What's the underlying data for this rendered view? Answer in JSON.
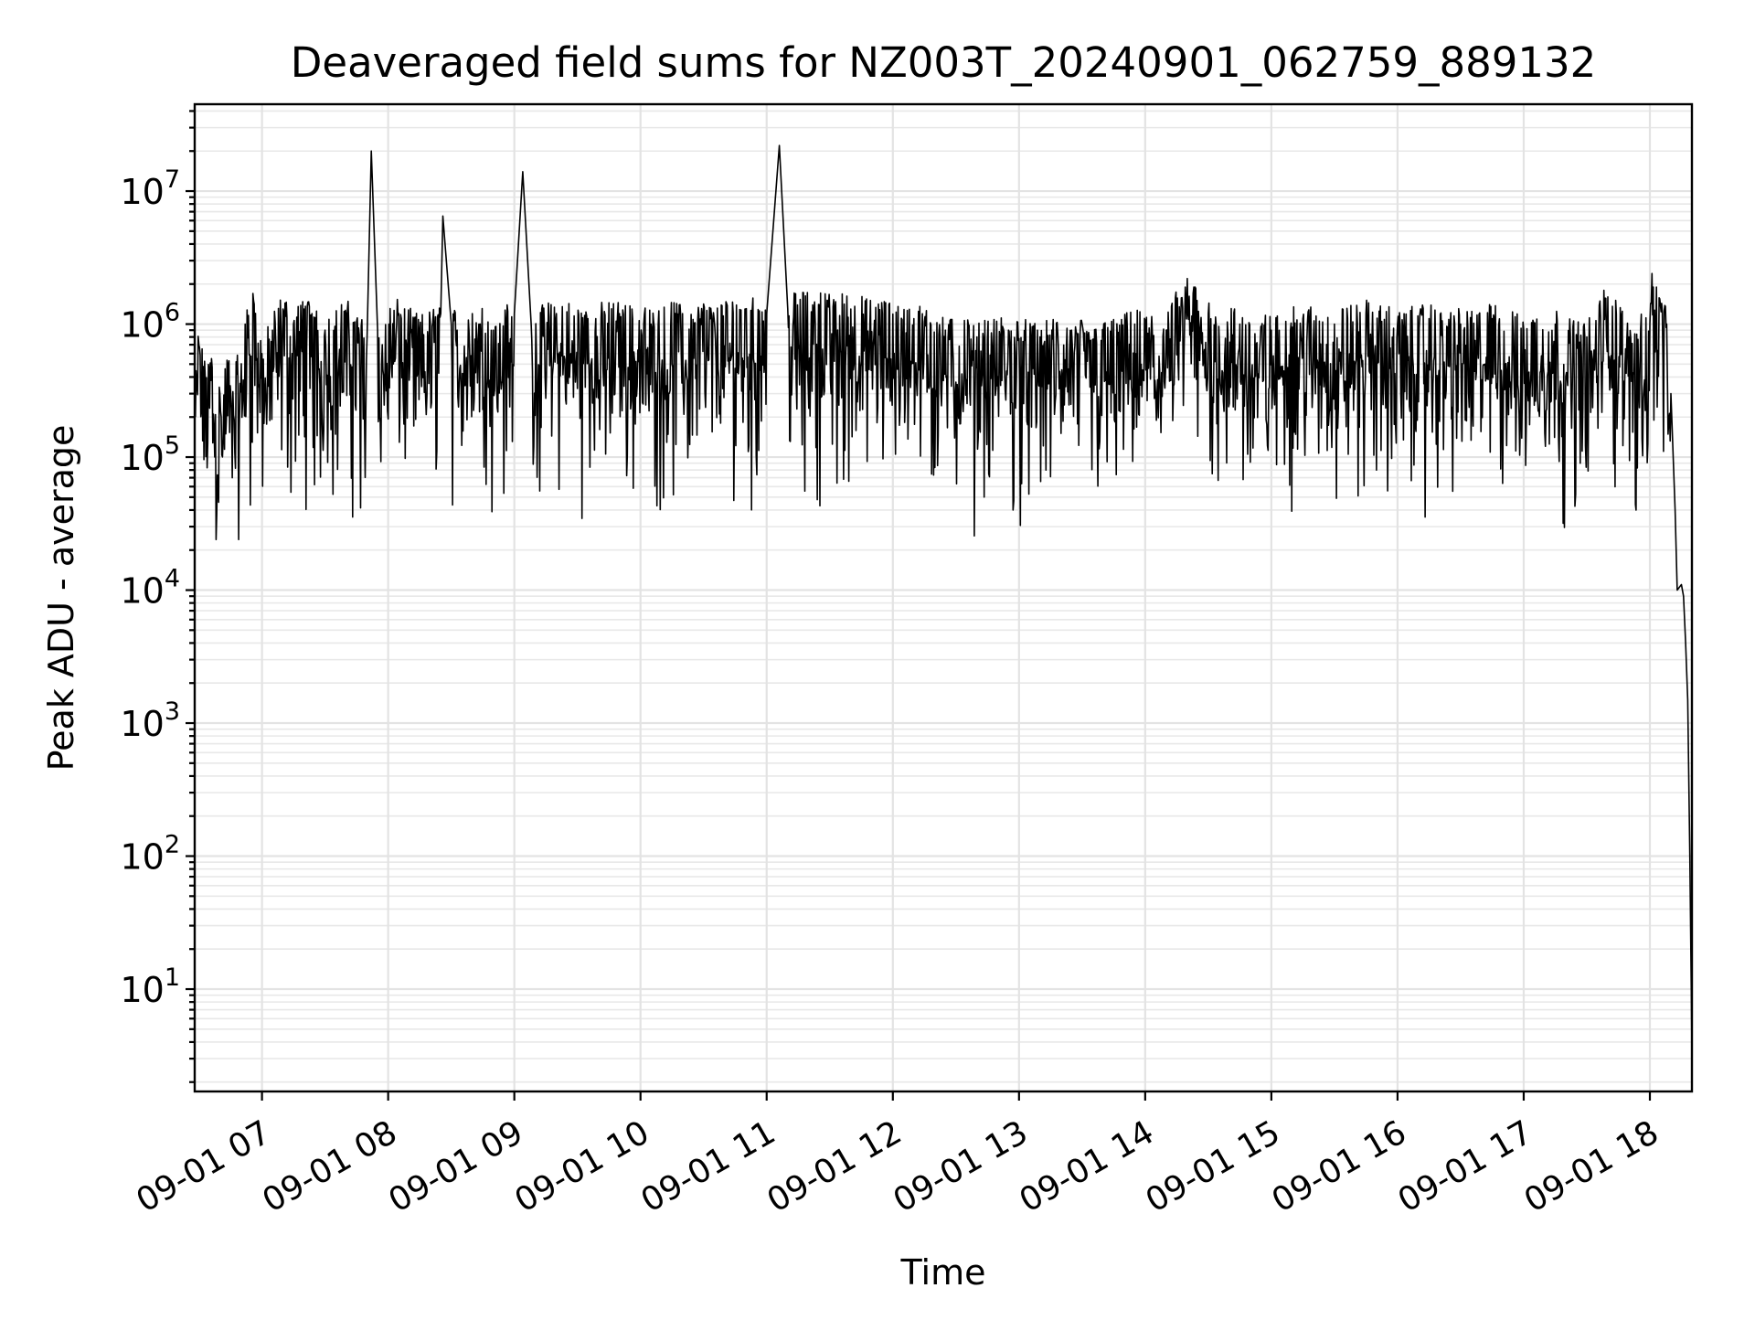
{
  "chart_data": {
    "type": "line",
    "title": "Deaveraged field sums for NZ003T_20240901_062759_889132",
    "xlabel": "Time",
    "ylabel": "Peak ADU - average",
    "yscale": "log",
    "xlim": [
      "09-01 06:28",
      "09-01 18:20"
    ],
    "ylim": [
      1.7,
      45000000
    ],
    "grid": "on (major and minor)",
    "x_tick_labels": [
      "09-01 07",
      "09-01 08",
      "09-01 09",
      "09-01 10",
      "09-01 11",
      "09-01 12",
      "09-01 13",
      "09-01 14",
      "09-01 15",
      "09-01 16",
      "09-01 17",
      "09-01 18"
    ],
    "y_tick_labels": [
      {
        "base": "10",
        "exp": "1",
        "value": 10
      },
      {
        "base": "10",
        "exp": "2",
        "value": 100
      },
      {
        "base": "10",
        "exp": "3",
        "value": 1000
      },
      {
        "base": "10",
        "exp": "4",
        "value": 10000
      },
      {
        "base": "10",
        "exp": "5",
        "value": 100000
      },
      {
        "base": "10",
        "exp": "6",
        "value": 1000000
      },
      {
        "base": "10",
        "exp": "7",
        "value": 10000000
      }
    ],
    "series": [
      {
        "color": "#000000",
        "points": [
          [
            "09-01 06:28",
            500000
          ],
          [
            "09-01 06:30",
            700000
          ],
          [
            "09-01 06:33",
            400000
          ],
          [
            "09-01 06:36",
            550000
          ],
          [
            "09-01 06:40",
            300000
          ],
          [
            "09-01 06:44",
            500000
          ],
          [
            "09-01 06:48",
            420000
          ],
          [
            "09-01 06:52",
            1000000
          ],
          [
            "09-01 06:56",
            1500000
          ],
          [
            "09-01 07:00",
            600000
          ],
          [
            "09-01 07:05",
            900000
          ],
          [
            "09-01 07:10",
            1300000
          ],
          [
            "09-01 07:15",
            1000000
          ],
          [
            "09-01 07:20",
            1300000
          ],
          [
            "09-01 07:30",
            900000
          ],
          [
            "09-01 07:40",
            1200000
          ],
          [
            "09-01 07:50",
            800000
          ],
          [
            "09-01 07:52",
            20000000
          ],
          [
            "09-01 07:55",
            900000
          ],
          [
            "09-01 08:05",
            1200000
          ],
          [
            "09-01 08:15",
            900000
          ],
          [
            "09-01 08:25",
            1200000
          ],
          [
            "09-01 08:26",
            6500000
          ],
          [
            "09-01 08:30",
            1000000
          ],
          [
            "09-01 08:40",
            1200000
          ],
          [
            "09-01 08:50",
            900000
          ],
          [
            "09-01 09:00",
            1200000
          ],
          [
            "09-01 09:04",
            14000000
          ],
          [
            "09-01 09:08",
            1000000
          ],
          [
            "09-01 09:20",
            1200000
          ],
          [
            "09-01 09:35",
            1100000
          ],
          [
            "09-01 09:50",
            1200000
          ],
          [
            "09-01 10:05",
            1000000
          ],
          [
            "09-01 10:20",
            1200000
          ],
          [
            "09-01 10:35",
            1100000
          ],
          [
            "09-01 10:50",
            1300000
          ],
          [
            "09-01 11:00",
            1200000
          ],
          [
            "09-01 11:06",
            22000000
          ],
          [
            "09-01 11:10",
            1300000
          ],
          [
            "09-01 11:25",
            1400000
          ],
          [
            "09-01 11:40",
            1300000
          ],
          [
            "09-01 11:55",
            1200000
          ],
          [
            "09-01 12:10",
            1100000
          ],
          [
            "09-01 12:25",
            900000
          ],
          [
            "09-01 12:40",
            800000
          ],
          [
            "09-01 12:55",
            900000
          ],
          [
            "09-01 13:10",
            800000
          ],
          [
            "09-01 13:25",
            900000
          ],
          [
            "09-01 13:40",
            800000
          ],
          [
            "09-01 13:55",
            1000000
          ],
          [
            "09-01 14:10",
            900000
          ],
          [
            "09-01 14:20",
            2200000
          ],
          [
            "09-01 14:30",
            1200000
          ],
          [
            "09-01 14:45",
            1000000
          ],
          [
            "09-01 15:00",
            900000
          ],
          [
            "09-01 15:15",
            1100000
          ],
          [
            "09-01 15:30",
            1000000
          ],
          [
            "09-01 15:45",
            1200000
          ],
          [
            "09-01 16:00",
            1000000
          ],
          [
            "09-01 16:15",
            1100000
          ],
          [
            "09-01 16:30",
            1000000
          ],
          [
            "09-01 16:45",
            1100000
          ],
          [
            "09-01 17:00",
            900000
          ],
          [
            "09-01 17:15",
            1000000
          ],
          [
            "09-01 17:30",
            800000
          ],
          [
            "09-01 17:40",
            1600000
          ],
          [
            "09-01 17:50",
            800000
          ],
          [
            "09-01 18:00",
            1000000
          ],
          [
            "09-01 18:01",
            2400000
          ],
          [
            "09-01 18:05",
            1400000
          ],
          [
            "09-01 18:08",
            1000000
          ],
          [
            "09-01 18:10",
            300000
          ],
          [
            "09-01 18:12",
            40000
          ],
          [
            "09-01 18:13",
            10000
          ],
          [
            "09-01 18:15",
            11000
          ],
          [
            "09-01 18:16",
            9000
          ],
          [
            "09-01 18:17",
            4000
          ],
          [
            "09-01 18:18",
            1500
          ],
          [
            "09-01 18:19",
            100
          ],
          [
            "09-01 18:20",
            3.5
          ]
        ]
      }
    ]
  }
}
